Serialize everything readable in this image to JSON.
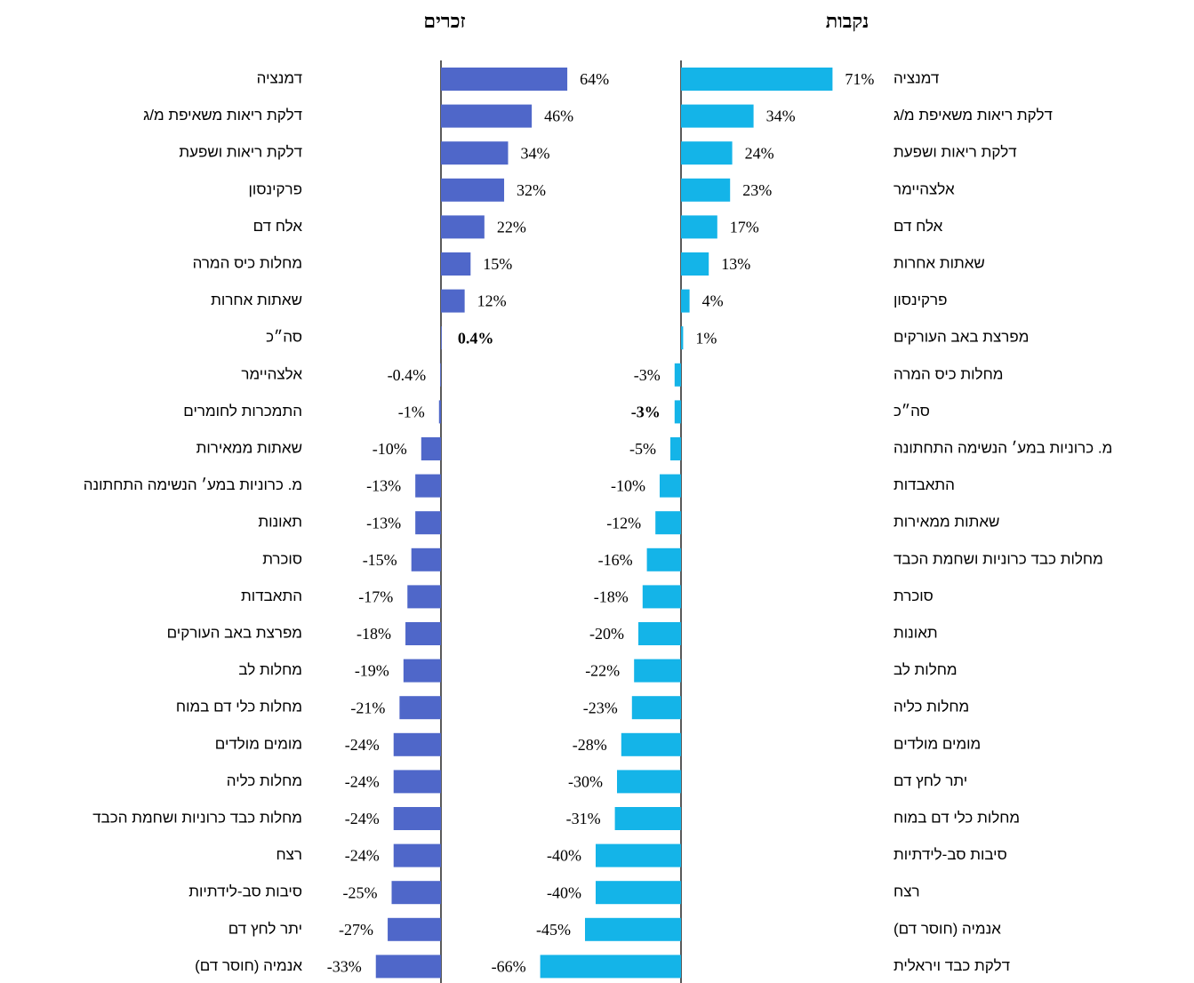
{
  "chart_data": [
    {
      "type": "bar",
      "orientation": "horizontal",
      "title": "זכרים",
      "color": "#4f67c9",
      "xlim": [
        -35,
        65
      ],
      "bold_index": 7,
      "categories": [
        "דמנציה",
        "דלקת ריאות משאיפת מ/ג",
        "דלקת ריאות ושפעת",
        "פרקינסון",
        "אלח דם",
        "מחלות כיס המרה",
        "שאתות אחרות",
        "סה״כ",
        "אלצהיימר",
        "התמכרות לחומרים",
        "שאתות ממאירות",
        "מ. כרוניות במע׳ הנשימה התחתונה",
        "תאונות",
        "סוכרת",
        "התאבדות",
        "מפרצת באב העורקים",
        "מחלות לב",
        "מחלות כלי דם במוח",
        "מומים מולדים",
        "מחלות כליה",
        "מחלות כבד כרוניות ושחמת הכבד",
        "רצח",
        "סיבות סב-לידתיות",
        "יתר לחץ דם",
        "אנמיה (חוסר דם)"
      ],
      "values": [
        64,
        46,
        34,
        32,
        22,
        15,
        12,
        0.4,
        -0.4,
        -1,
        -10,
        -13,
        -13,
        -15,
        -17,
        -18,
        -19,
        -21,
        -24,
        -24,
        -24,
        -24,
        -25,
        -27,
        -33
      ],
      "value_labels": [
        "64%",
        "46%",
        "34%",
        "32%",
        "22%",
        "15%",
        "12%",
        "0.4%",
        "-0.4%",
        "-1%",
        "-10%",
        "-13%",
        "-13%",
        "-15%",
        "-17%",
        "-18%",
        "-19%",
        "-21%",
        "-24%",
        "-24%",
        "-24%",
        "-24%",
        "-25%",
        "-27%",
        "-33%"
      ]
    },
    {
      "type": "bar",
      "orientation": "horizontal",
      "title": "נקבות",
      "color": "#14b4e8",
      "xlim": [
        -70,
        75
      ],
      "bold_index": 9,
      "categories": [
        "דמנציה",
        "דלקת ריאות משאיפת מ/ג",
        "דלקת ריאות ושפעת",
        "אלצהיימר",
        "אלח דם",
        "שאתות אחרות",
        "פרקינסון",
        "מפרצת באב העורקים",
        "מחלות כיס המרה",
        "סה״כ",
        "מ. כרוניות במע׳ הנשימה התחתונה",
        "התאבדות",
        "שאתות ממאירות",
        "מחלות כבד כרוניות ושחמת הכבד",
        "סוכרת",
        "תאונות",
        "מחלות לב",
        "מחלות כליה",
        "מומים מולדים",
        "יתר לחץ דם",
        "מחלות כלי דם במוח",
        "סיבות סב-לידתיות",
        "רצח",
        "אנמיה (חוסר דם)",
        "דלקת כבד ויראלית"
      ],
      "values": [
        71,
        34,
        24,
        23,
        17,
        13,
        4,
        1,
        -3,
        -3,
        -5,
        -10,
        -12,
        -16,
        -18,
        -20,
        -22,
        -23,
        -28,
        -30,
        -31,
        -40,
        -40,
        -45,
        -66
      ],
      "value_labels": [
        "71%",
        "34%",
        "24%",
        "23%",
        "17%",
        "13%",
        "4%",
        "1%",
        "-3%",
        "-3%",
        "-5%",
        "-10%",
        "-12%",
        "-16%",
        "-18%",
        "-20%",
        "-22%",
        "-23%",
        "-28%",
        "-30%",
        "-31%",
        "-40%",
        "-40%",
        "-45%",
        "-66%"
      ]
    }
  ]
}
